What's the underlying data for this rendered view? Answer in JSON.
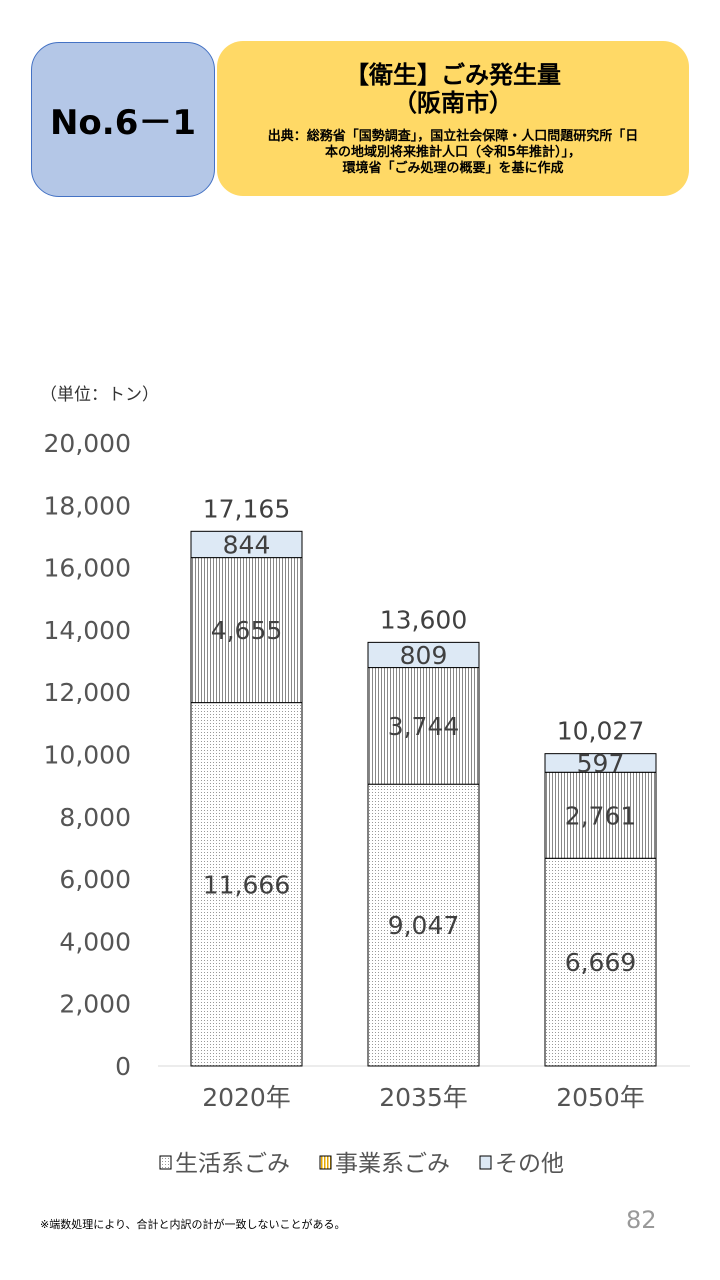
{
  "header": {
    "number": "No.6－1",
    "title": "【衛生】ごみ発生量",
    "subtitle": "（阪南市）",
    "source_lines": [
      "出典：総務省「国勢調査」，国立社会保障・人口問題研究所「日",
      "本の地域別将来推計人口（令和5年推計）」，",
      "環境省「ごみ処理の概要」を基に作成"
    ]
  },
  "chart_data": {
    "type": "bar",
    "stacked": true,
    "unit_label": "（単位：トン）",
    "categories": [
      "2020年",
      "2035年",
      "2050年"
    ],
    "series": [
      {
        "name": "生活系ごみ",
        "values": [
          11666,
          9047,
          6669
        ],
        "labels": [
          "11,666",
          "9,047",
          "6,669"
        ]
      },
      {
        "name": "事業系ごみ",
        "values": [
          4655,
          3744,
          2761
        ],
        "labels": [
          "4,655",
          "3,744",
          "2,761"
        ]
      },
      {
        "name": "その他",
        "values": [
          844,
          809,
          597
        ],
        "labels": [
          "844",
          "809",
          "597"
        ],
        "color": "#dde9f5"
      }
    ],
    "totals": [
      17165,
      13600,
      10027
    ],
    "total_labels": [
      "17,165",
      "13,600",
      "10,027"
    ],
    "ylim": [
      0,
      20000
    ],
    "yticks": [
      "0",
      "2,000",
      "4,000",
      "6,000",
      "8,000",
      "10,000",
      "12,000",
      "14,000",
      "16,000",
      "18,000",
      "20,000"
    ],
    "legend": "bottom"
  },
  "footer": {
    "note": "※端数処理により、合計と内訳の計が一致しないことがある。",
    "page": "82"
  }
}
